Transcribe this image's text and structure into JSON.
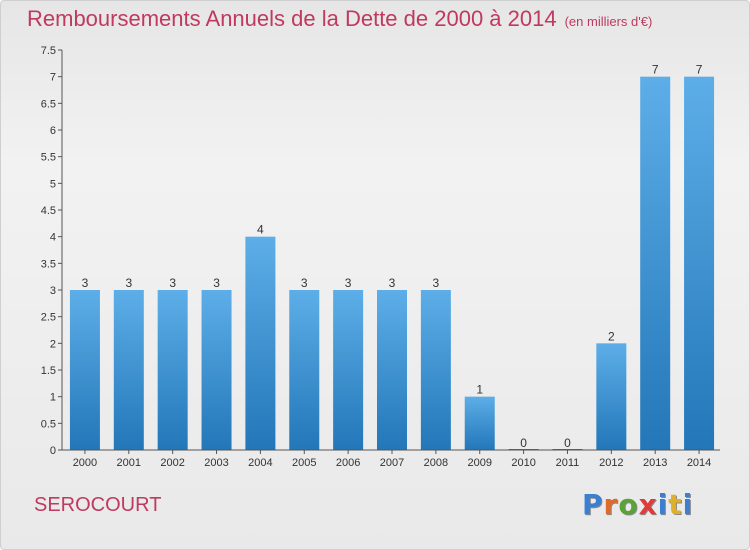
{
  "title": "Remboursements Annuels de la Dette de 2000 à 2014",
  "subtitle": "(en milliers d'€)",
  "commune": "SEROCOURT",
  "logo": {
    "text": "Proxiti",
    "colors": [
      "#3a7fd0",
      "#e06a2a",
      "#5aa338",
      "#e03a3a",
      "#3a7fd0",
      "#e0b02a",
      "#3a7fd0"
    ]
  },
  "colors": {
    "accent": "#c0395f",
    "bar_top": "#5daee8",
    "bar_bottom": "#2377b8"
  },
  "chart_data": {
    "type": "bar",
    "title": "Remboursements Annuels de la Dette de 2000 à 2014",
    "categories": [
      "2000",
      "2001",
      "2002",
      "2003",
      "2004",
      "2005",
      "2006",
      "2007",
      "2008",
      "2009",
      "2010",
      "2011",
      "2012",
      "2013",
      "2014"
    ],
    "values": [
      3,
      3,
      3,
      3,
      4,
      3,
      3,
      3,
      3,
      1,
      0,
      0,
      2,
      7,
      7
    ],
    "data_labels": [
      "3",
      "3",
      "3",
      "3",
      "4",
      "3",
      "3",
      "3",
      "3",
      "1",
      "0",
      "0",
      "2",
      "7",
      "7"
    ],
    "ylim": [
      0,
      7.5
    ],
    "yticks": [
      "0",
      "0.5",
      "1",
      "1.5",
      "2",
      "2.5",
      "3",
      "3.5",
      "4",
      "4.5",
      "5",
      "5.5",
      "6",
      "6.5",
      "7",
      "7.5"
    ],
    "grid": false,
    "legend": "none"
  }
}
